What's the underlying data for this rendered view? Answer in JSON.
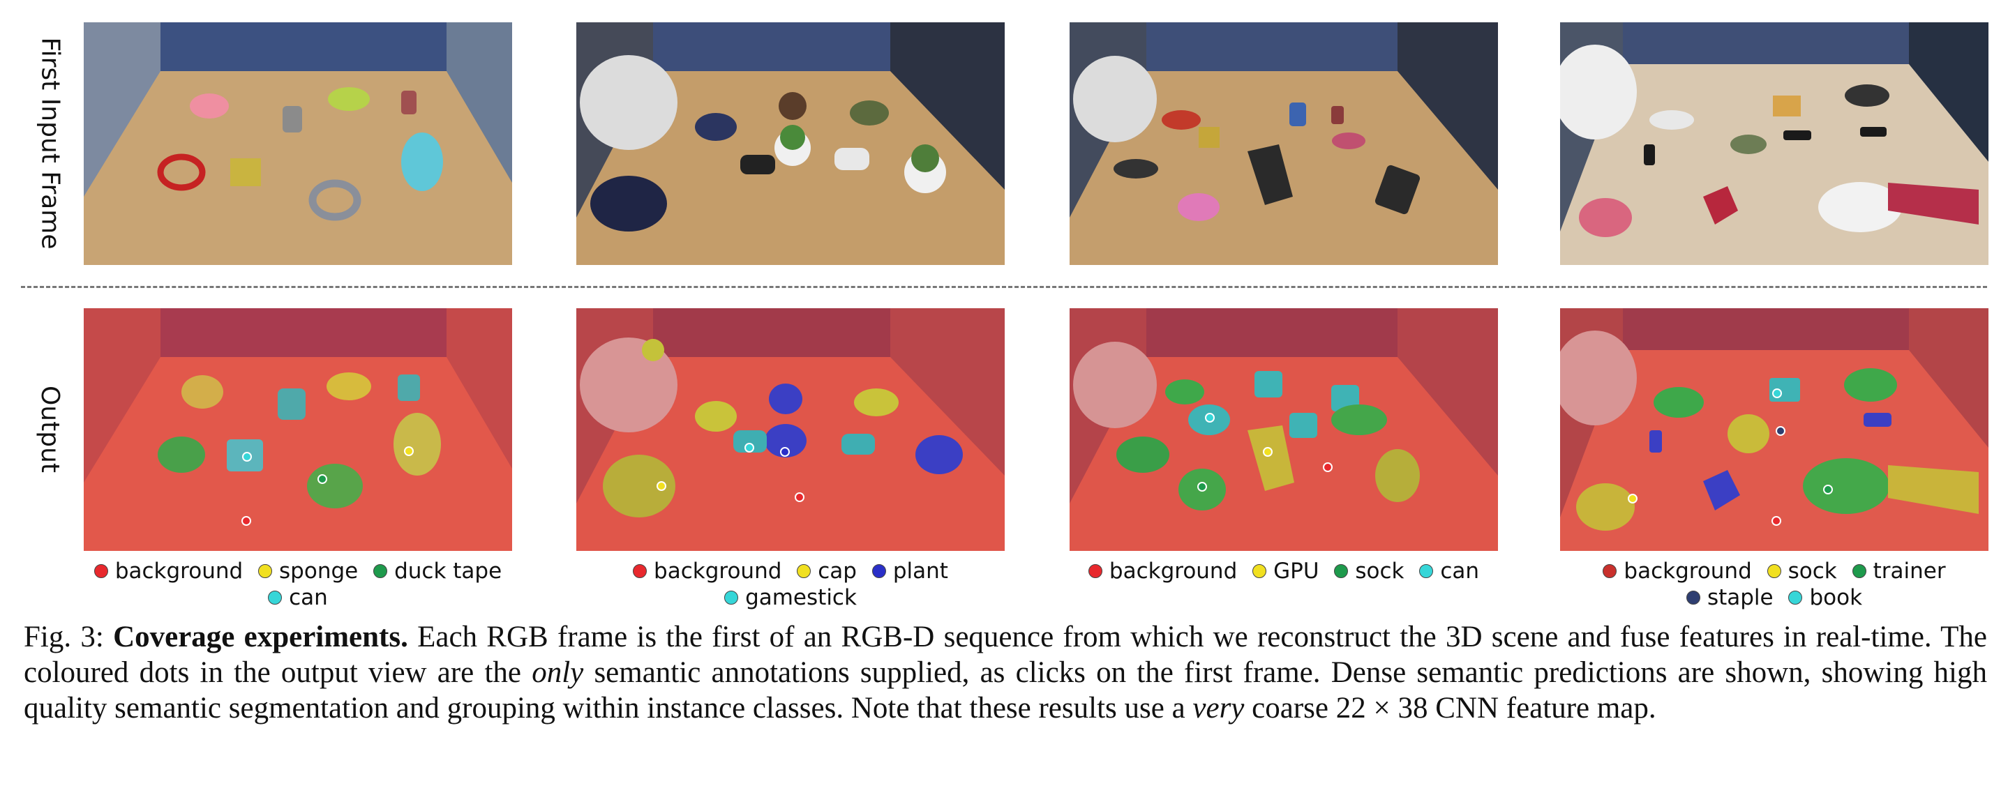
{
  "figure": {
    "row_labels": {
      "top": "First Input Frame",
      "bottom": "Output"
    },
    "legends": [
      {
        "items": [
          {
            "label": "background",
            "color": "#e8282d"
          },
          {
            "label": "sponge",
            "color": "#f1e020"
          },
          {
            "label": "duck tape",
            "color": "#1e9a4c"
          },
          {
            "label": "can",
            "color": "#36d6d8"
          }
        ]
      },
      {
        "items": [
          {
            "label": "background",
            "color": "#e8282d"
          },
          {
            "label": "cap",
            "color": "#f1e020"
          },
          {
            "label": "plant",
            "color": "#2a2fc8"
          },
          {
            "label": "gamestick",
            "color": "#36d6d8"
          }
        ]
      },
      {
        "items": [
          {
            "label": "background",
            "color": "#e8282d"
          },
          {
            "label": "GPU",
            "color": "#f1e020"
          },
          {
            "label": "sock",
            "color": "#1e9a4c"
          },
          {
            "label": "can",
            "color": "#36d6d8"
          }
        ]
      },
      {
        "items": [
          {
            "label": "background",
            "color": "#c9302c"
          },
          {
            "label": "sock",
            "color": "#f1e020"
          },
          {
            "label": "trainer",
            "color": "#1e9a4c"
          },
          {
            "label": "staple",
            "color": "#2e3e70"
          },
          {
            "label": "book",
            "color": "#36d6d8"
          }
        ]
      }
    ]
  },
  "caption": {
    "prefix": "Fig. 3: ",
    "title": "Coverage experiments.",
    "part1": " Each RGB frame is the first of an RGB-D sequence from which we reconstruct the 3D scene and fuse features in real-time. The coloured dots in the output view are the ",
    "only": "only",
    "part2": " semantic annotations supplied, as clicks on the first frame. Dense semantic predictions are shown, showing high quality semantic segmentation and grouping within instance classes. Note that these results use a ",
    "very": "very",
    "part3": " coarse ",
    "math": "22 × 38",
    "part4": " CNN feature map."
  }
}
